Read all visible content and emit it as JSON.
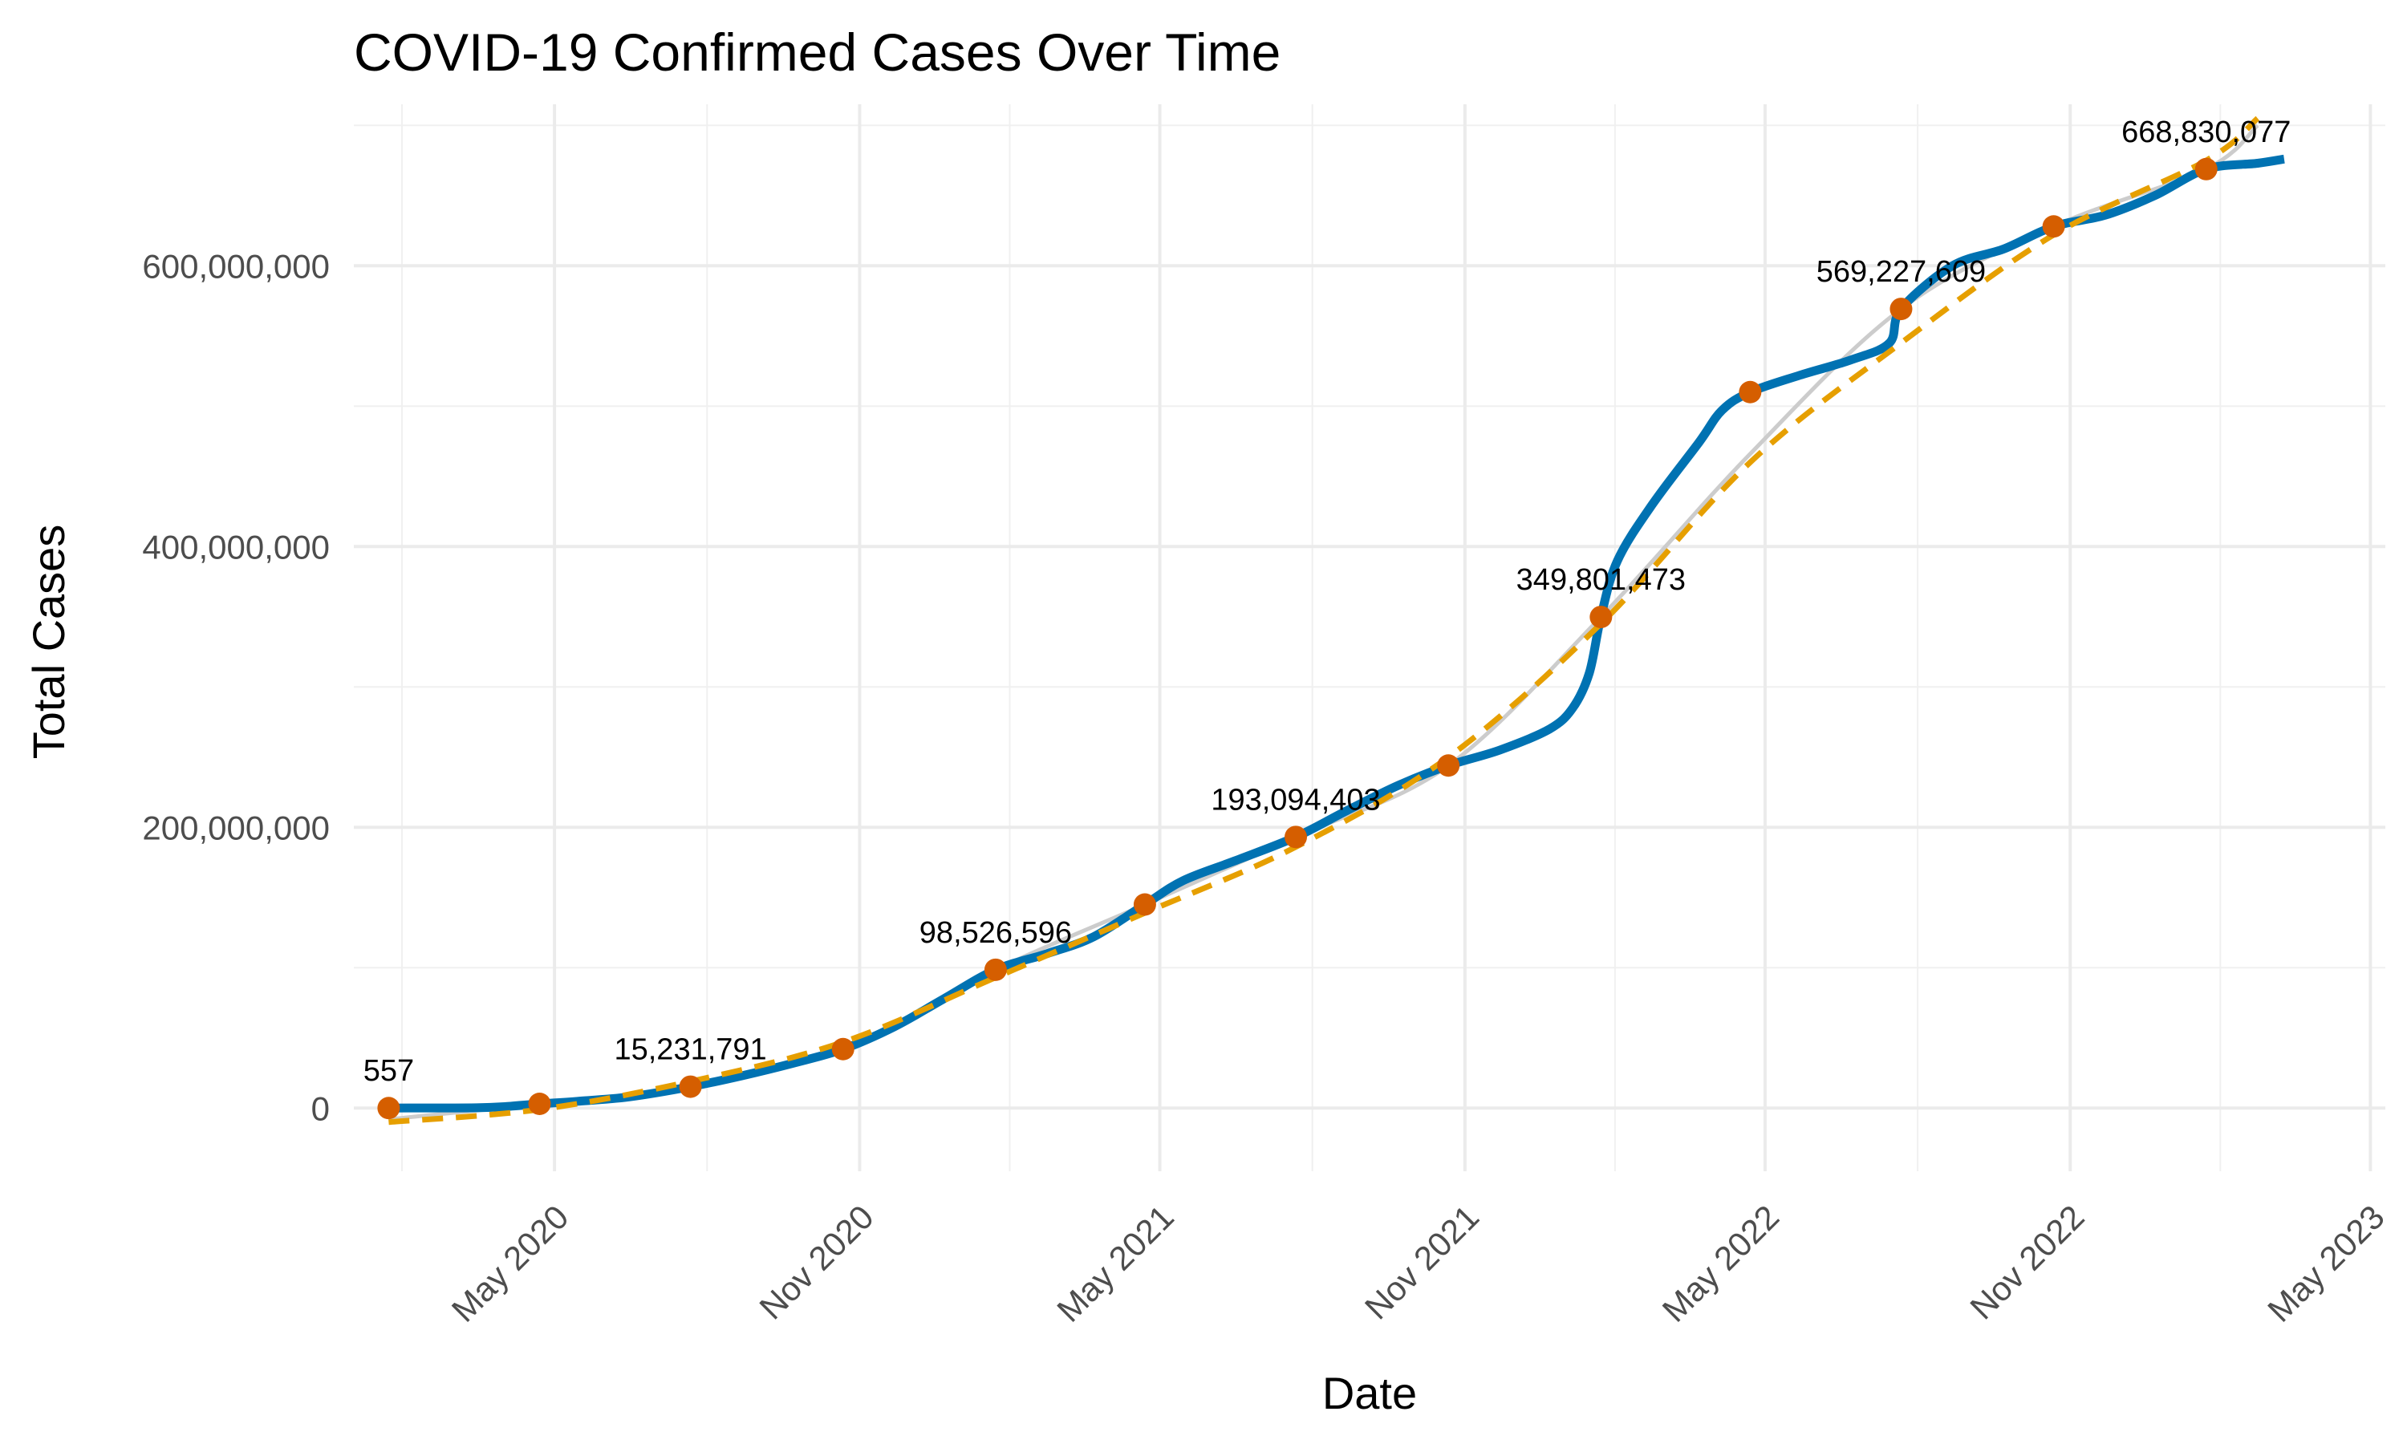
{
  "chart_data": {
    "type": "line",
    "title": "COVID-19 Confirmed Cases Over Time",
    "xlabel": "Date",
    "ylabel": "Total Cases",
    "x_axis": {
      "type": "date",
      "range": [
        "2020-01-01",
        "2023-05-10"
      ],
      "ticks": [
        {
          "date": "2020-05-01",
          "label": "May 2020"
        },
        {
          "date": "2020-11-01",
          "label": "Nov 2020"
        },
        {
          "date": "2021-05-01",
          "label": "May 2021"
        },
        {
          "date": "2021-11-01",
          "label": "Nov 2021"
        },
        {
          "date": "2022-05-01",
          "label": "May 2022"
        },
        {
          "date": "2022-11-01",
          "label": "Nov 2022"
        },
        {
          "date": "2023-05-01",
          "label": "May 2023"
        }
      ]
    },
    "y_axis": {
      "range": [
        -45000000,
        715000000
      ],
      "ticks": [
        {
          "value": 0,
          "label": "0"
        },
        {
          "value": 200000000,
          "label": "200,000,000"
        },
        {
          "value": 400000000,
          "label": "400,000,000"
        },
        {
          "value": 600000000,
          "label": "600,000,000"
        }
      ],
      "minor_ticks": [
        100000000,
        300000000,
        500000000,
        700000000
      ]
    },
    "grid": true,
    "series": [
      {
        "style": "line",
        "color": "#0072B2",
        "points": [
          [
            "2020-01-22",
            557
          ],
          [
            "2020-02-15",
            70000
          ],
          [
            "2020-03-15",
            200000
          ],
          [
            "2020-04-01",
            1000000
          ],
          [
            "2020-04-22",
            3000000
          ],
          [
            "2020-05-15",
            4800000
          ],
          [
            "2020-06-15",
            8000000
          ],
          [
            "2020-07-22",
            15231791
          ],
          [
            "2020-08-22",
            23000000
          ],
          [
            "2020-09-22",
            32000000
          ],
          [
            "2020-10-22",
            42000000
          ],
          [
            "2020-11-22",
            58000000
          ],
          [
            "2020-12-22",
            78000000
          ],
          [
            "2021-01-22",
            98526596
          ],
          [
            "2021-02-22",
            110000000
          ],
          [
            "2021-03-22",
            122000000
          ],
          [
            "2021-04-22",
            145000000
          ],
          [
            "2021-05-15",
            162000000
          ],
          [
            "2021-06-15",
            176000000
          ],
          [
            "2021-07-22",
            193094403
          ],
          [
            "2021-08-22",
            212000000
          ],
          [
            "2021-09-22",
            230000000
          ],
          [
            "2021-10-22",
            244000000
          ],
          [
            "2021-11-22",
            255000000
          ],
          [
            "2021-12-22",
            270000000
          ],
          [
            "2022-01-05",
            285000000
          ],
          [
            "2022-01-15",
            310000000
          ],
          [
            "2022-01-22",
            349801473
          ],
          [
            "2022-02-01",
            390000000
          ],
          [
            "2022-02-22",
            430000000
          ],
          [
            "2022-03-22",
            474000000
          ],
          [
            "2022-04-05",
            497000000
          ],
          [
            "2022-04-22",
            510000000
          ],
          [
            "2022-05-22",
            522000000
          ],
          [
            "2022-06-22",
            533000000
          ],
          [
            "2022-07-15",
            545000000
          ],
          [
            "2022-07-22",
            569227609
          ],
          [
            "2022-08-22",
            600000000
          ],
          [
            "2022-09-22",
            612000000
          ],
          [
            "2022-10-22",
            628000000
          ],
          [
            "2022-11-22",
            636000000
          ],
          [
            "2022-12-22",
            650000000
          ],
          [
            "2023-01-22",
            668830077
          ],
          [
            "2023-02-22",
            673000000
          ],
          [
            "2023-03-10",
            676000000
          ]
        ]
      },
      {
        "style": "line",
        "color": "#cccccc",
        "points": [
          [
            "2020-01-22",
            -8000000
          ],
          [
            "2020-04-22",
            3000000
          ],
          [
            "2020-07-22",
            15231791
          ],
          [
            "2020-10-22",
            42000000
          ],
          [
            "2021-01-22",
            98526596
          ],
          [
            "2021-04-22",
            145000000
          ],
          [
            "2021-07-22",
            193094403
          ],
          [
            "2021-10-22",
            244000000
          ],
          [
            "2022-01-22",
            349801473
          ],
          [
            "2022-04-22",
            466000000
          ],
          [
            "2022-07-22",
            569227609
          ],
          [
            "2022-10-22",
            628000000
          ],
          [
            "2023-01-22",
            668830077
          ],
          [
            "2023-02-22",
            700000000
          ]
        ]
      },
      {
        "style": "dashed",
        "color": "#E69F00",
        "points": [
          [
            "2020-01-22",
            -10000000
          ],
          [
            "2020-04-22",
            -1000000
          ],
          [
            "2020-07-22",
            19000000
          ],
          [
            "2020-10-22",
            47000000
          ],
          [
            "2021-01-22",
            93000000
          ],
          [
            "2021-04-22",
            139000000
          ],
          [
            "2021-07-22",
            186000000
          ],
          [
            "2021-10-22",
            250000000
          ],
          [
            "2022-01-22",
            345000000
          ],
          [
            "2022-04-22",
            460000000
          ],
          [
            "2022-07-22",
            545000000
          ],
          [
            "2022-10-22",
            622000000
          ],
          [
            "2023-01-22",
            675000000
          ],
          [
            "2023-02-22",
            705000000
          ]
        ]
      }
    ],
    "markers": {
      "color": "#D55E00",
      "points": [
        {
          "date": "2020-01-22",
          "value": 557,
          "label": "557"
        },
        {
          "date": "2020-04-22",
          "value": 3000000,
          "label": ""
        },
        {
          "date": "2020-07-22",
          "value": 15231791,
          "label": "15,231,791"
        },
        {
          "date": "2020-10-22",
          "value": 42000000,
          "label": ""
        },
        {
          "date": "2021-01-22",
          "value": 98526596,
          "label": "98,526,596"
        },
        {
          "date": "2021-04-22",
          "value": 145000000,
          "label": ""
        },
        {
          "date": "2021-07-22",
          "value": 193094403,
          "label": "193,094,403"
        },
        {
          "date": "2021-10-22",
          "value": 244000000,
          "label": ""
        },
        {
          "date": "2022-01-22",
          "value": 349801473,
          "label": "349,801,473"
        },
        {
          "date": "2022-04-22",
          "value": 510000000,
          "label": ""
        },
        {
          "date": "2022-07-22",
          "value": 569227609,
          "label": "569,227,609"
        },
        {
          "date": "2022-10-22",
          "value": 628000000,
          "label": ""
        },
        {
          "date": "2023-01-22",
          "value": 668830077,
          "label": "668,830,077"
        }
      ]
    }
  }
}
